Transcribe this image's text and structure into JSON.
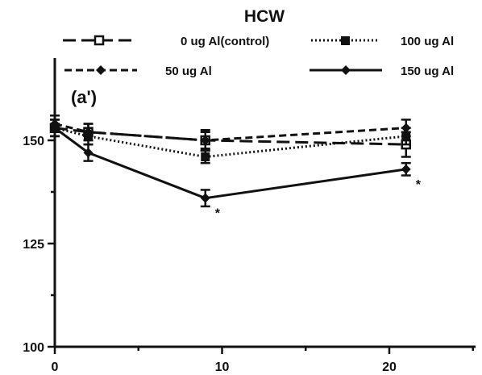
{
  "chart_data": {
    "type": "line",
    "title": "HCW",
    "panel_label": "(a')",
    "xlabel": "",
    "ylabel": "",
    "xlim": [
      0,
      25
    ],
    "ylim": [
      100,
      165
    ],
    "x_ticks": [
      "0",
      "10",
      "20"
    ],
    "y_ticks": [
      "100",
      "125",
      "150"
    ],
    "grid": false,
    "legend_position": "top",
    "series": [
      {
        "name": "0 ug Al(control)",
        "marker": "square",
        "line_style": "long-dash",
        "x": [
          0,
          2,
          9,
          21
        ],
        "y": [
          153,
          152,
          150,
          149
        ],
        "error": [
          2,
          2,
          2,
          3
        ]
      },
      {
        "name": "100 ug Al",
        "marker": "square-filled",
        "line_style": "dotted",
        "x": [
          0,
          2,
          9,
          21
        ],
        "y": [
          153,
          151,
          146,
          151
        ],
        "error": [
          2,
          2,
          1.5,
          2
        ]
      },
      {
        "name": "50 ug Al",
        "marker": "diamond",
        "line_style": "short-dash",
        "x": [
          0,
          2,
          9,
          21
        ],
        "y": [
          154,
          152,
          150,
          153
        ],
        "error": [
          2,
          2,
          2.5,
          2
        ]
      },
      {
        "name": "150 ug Al",
        "marker": "diamond",
        "line_style": "solid",
        "x": [
          0,
          2,
          9,
          21
        ],
        "y": [
          153,
          147,
          136,
          143
        ],
        "error": [
          2,
          2,
          2,
          1.5
        ]
      }
    ],
    "annotations": [
      {
        "text": "*",
        "x": 9,
        "y": 136
      },
      {
        "text": "*",
        "x": 21,
        "y": 143
      }
    ]
  }
}
